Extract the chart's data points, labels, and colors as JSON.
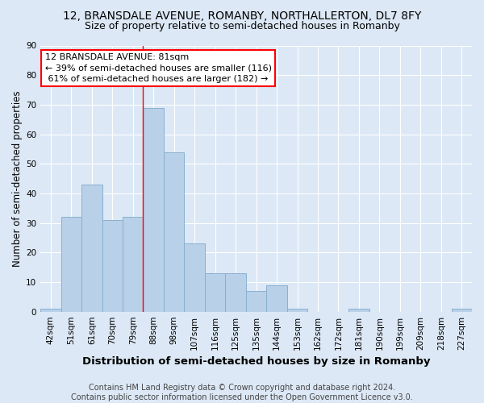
{
  "title": "12, BRANSDALE AVENUE, ROMANBY, NORTHALLERTON, DL7 8FY",
  "subtitle": "Size of property relative to semi-detached houses in Romanby",
  "xlabel": "Distribution of semi-detached houses by size in Romanby",
  "ylabel": "Number of semi-detached properties",
  "categories": [
    "42sqm",
    "51sqm",
    "61sqm",
    "70sqm",
    "79sqm",
    "88sqm",
    "98sqm",
    "107sqm",
    "116sqm",
    "125sqm",
    "135sqm",
    "144sqm",
    "153sqm",
    "162sqm",
    "172sqm",
    "181sqm",
    "190sqm",
    "199sqm",
    "209sqm",
    "218sqm",
    "227sqm"
  ],
  "values": [
    1,
    32,
    43,
    31,
    32,
    69,
    54,
    23,
    13,
    13,
    7,
    9,
    1,
    0,
    0,
    1,
    0,
    0,
    0,
    0,
    1
  ],
  "bar_color": "#b8d0e8",
  "bar_edge_color": "#8ab0d0",
  "vline_x": 4.5,
  "annotation_text": "12 BRANSDALE AVENUE: 81sqm\n← 39% of semi-detached houses are smaller (116)\n 61% of semi-detached houses are larger (182) →",
  "ylim": [
    0,
    90
  ],
  "yticks": [
    0,
    10,
    20,
    30,
    40,
    50,
    60,
    70,
    80,
    90
  ],
  "footnote": "Contains HM Land Registry data © Crown copyright and database right 2024.\nContains public sector information licensed under the Open Government Licence v3.0.",
  "bg_color": "#dce8f5",
  "plot_bg_color": "#dce8f5",
  "title_fontsize": 10,
  "subtitle_fontsize": 9,
  "xlabel_fontsize": 9.5,
  "ylabel_fontsize": 8.5,
  "tick_fontsize": 7.5,
  "footnote_fontsize": 7,
  "annotation_fontsize": 8
}
